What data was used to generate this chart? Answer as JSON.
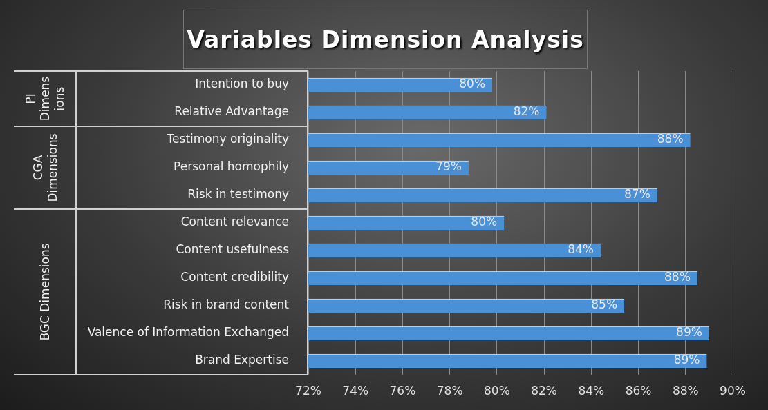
{
  "chart_data": {
    "type": "bar",
    "orientation": "horizontal",
    "title": "Variables Dimension Analysis",
    "categories": [
      "Intention to buy",
      "Relative Advantage",
      "Testimony originality",
      "Personal homophily",
      "Risk in testimony",
      "Content relevance",
      "Content usefulness",
      "Content credibility",
      "Risk in brand content",
      "Valence of Information Exchanged",
      "Brand Expertise"
    ],
    "values": [
      79.8,
      82.1,
      88.2,
      78.8,
      86.8,
      80.3,
      84.4,
      88.5,
      85.4,
      89.0,
      88.9
    ],
    "value_labels": [
      "80%",
      "82%",
      "88%",
      "79%",
      "87%",
      "80%",
      "84%",
      "88%",
      "85%",
      "89%",
      "89%"
    ],
    "color": "#4a90d6",
    "xlim": [
      72,
      90
    ],
    "xticks": [
      {
        "value": 72,
        "label": "72%"
      },
      {
        "value": 74,
        "label": "74%"
      },
      {
        "value": 76,
        "label": "76%"
      },
      {
        "value": 78,
        "label": "78%"
      },
      {
        "value": 80,
        "label": "80%"
      },
      {
        "value": 82,
        "label": "82%"
      },
      {
        "value": 84,
        "label": "84%"
      },
      {
        "value": 86,
        "label": "86%"
      },
      {
        "value": 88,
        "label": "88%"
      },
      {
        "value": 90,
        "label": "90%"
      }
    ],
    "grid": "x",
    "annotations": [
      {
        "text": "PI Dimensions",
        "y": "Intention to buy"
      },
      {
        "text": "CGA Dimensions",
        "y": "Testimony originality"
      },
      {
        "text": "BGC Dimensions",
        "y": "Content relevance"
      }
    ]
  }
}
